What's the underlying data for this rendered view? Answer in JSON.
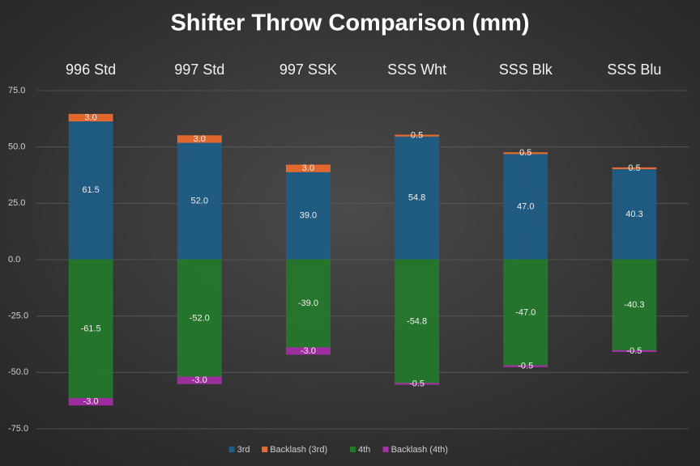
{
  "chart_data": {
    "type": "bar",
    "stacked": true,
    "title": "Shifter Throw Comparison (mm)",
    "categories": [
      "996 Std",
      "997 Std",
      "997 SSK",
      "SSS Wht",
      "SSS Blk",
      "SSS Blu"
    ],
    "series": [
      {
        "name": "3rd",
        "color": "#1d5d88",
        "values": [
          61.5,
          52,
          39,
          54.8,
          47,
          40.3
        ],
        "value_labels": [
          "61.5",
          "52.0",
          "39.0",
          "54.8",
          "47.0",
          "40.3"
        ]
      },
      {
        "name": "Backlash (3rd)",
        "color": "#ee6b2d",
        "values": [
          3,
          3,
          3,
          0.5,
          0.5,
          0.5
        ],
        "value_labels": [
          "3.0",
          "3.0",
          "3.0",
          "0.5",
          "0.5",
          "0.5"
        ]
      },
      {
        "name": "4th",
        "color": "#237a2b",
        "values": [
          -61.5,
          -52,
          -39,
          -54.8,
          -47,
          -40.3
        ],
        "value_labels": [
          "-61.5",
          "-52.0",
          "-39.0",
          "-54.8",
          "-47.0",
          "-40.3"
        ]
      },
      {
        "name": "Backlash (4th)",
        "color": "#a62ea6",
        "values": [
          -3,
          -3,
          -3,
          -0.5,
          -0.5,
          -0.5
        ],
        "value_labels": [
          "-3.0",
          "-3.0",
          "-3.0",
          "-0.5",
          "-0.5",
          "-0.5"
        ]
      }
    ],
    "ylim": [
      -75,
      75
    ],
    "yticks": [
      {
        "value": -75,
        "label": "-75.0"
      },
      {
        "value": -50,
        "label": "-50.0"
      },
      {
        "value": -25,
        "label": "-25.0"
      },
      {
        "value": 0,
        "label": "0.0"
      },
      {
        "value": 25,
        "label": "25.0"
      },
      {
        "value": 50,
        "label": "50.0"
      },
      {
        "value": 75,
        "label": "75.0"
      }
    ],
    "grid": true,
    "legend": "bottom"
  }
}
